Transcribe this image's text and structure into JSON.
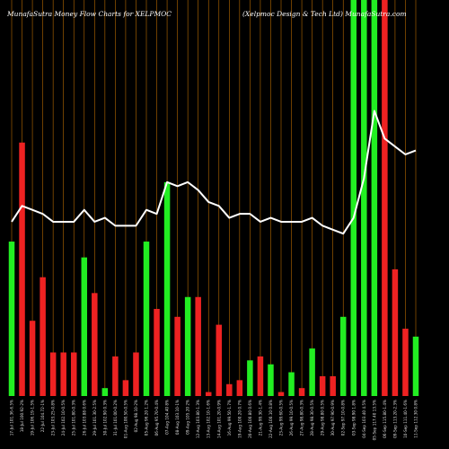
{
  "chart_data": {
    "type": "bar",
    "title_left": "MunafaSutra  Money Flow  Charts for XELPMOC",
    "title_right": "(Xelpmoc Design  & Tech Ltd) MunafaSutra.com",
    "ylim": [
      0,
      100
    ],
    "grid": "vertical-lines",
    "colors": {
      "up": "#22ee22",
      "down": "#ee2222",
      "line": "#ffffff",
      "grid": "#b86a00",
      "background": "#000000"
    },
    "categories": [
      "17-Jul 101.36-6.5%",
      "18-Jul 100.92-2%",
      "19-Jul 106.19-1.5%",
      "22-Jul 104.72-1%",
      "23-Jul 103.25-0.8%",
      "24-Jul 102.10-0.5%",
      "25-Jul 101.80-0.3%",
      "26-Jul 103.88 0.6%",
      "29-Jul 101.30-2.5%",
      "30-Jul 102.90 0.3%",
      "31-Jul 101.00-0.2%",
      "01-Aug 100.50-0.5%",
      "02-Aug 98.10-2%",
      "05-Aug 96.20 1.2%",
      "06-Aug 95.70-0.4%",
      "07-Aug 104.40 8%",
      "08-Aug 103.10-1%",
      "09-Aug 105.20 2%",
      "12-Aug 103.80-1.3%",
      "13-Aug 102.10-1.6%",
      "14-Aug 101.20-0.9%",
      "16-Aug 99.50-1.7%",
      "19-Aug 100.20 0.7%",
      "20-Aug 100.80 0.6%",
      "21-Aug 99.30-1.4%",
      "22-Aug 100.10 0.8%",
      "23-Aug 99.60-0.5%",
      "26-Aug 99.10-0.5%",
      "27-Aug 98.80-0.3%",
      "28-Aug 98.30-0.5%",
      "29-Aug 98.80 0.5%",
      "30-Aug 97.90-0.9%",
      "02-Sep 97.10-0.8%",
      "03-Sep 98.90 1.8%",
      "04-Sep 103.40 4.5%",
      "05-Sep 117.40 13.5%",
      "06-Sep 115.80-1.4%",
      "09-Sep 113.20-2.3%",
      "10-Sep 111.40-1.6%",
      "11-Sep 112.30 0.8%"
    ],
    "direction": [
      "up",
      "down",
      "down",
      "down",
      "down",
      "down",
      "down",
      "up",
      "down",
      "up",
      "down",
      "down",
      "down",
      "up",
      "down",
      "up",
      "down",
      "up",
      "down",
      "down",
      "down",
      "down",
      "down",
      "up",
      "down",
      "up",
      "down",
      "up",
      "down",
      "up",
      "down",
      "down",
      "up",
      "up",
      "up",
      "up",
      "down",
      "down",
      "down",
      "up"
    ],
    "values": [
      39,
      64,
      19,
      30,
      11,
      11,
      11,
      35,
      26,
      2,
      10,
      4,
      11,
      39,
      22,
      54,
      20,
      25,
      25,
      1,
      18,
      3,
      4,
      9,
      10,
      8,
      1,
      6,
      2,
      12,
      5,
      5,
      20,
      100,
      100,
      100,
      100,
      32,
      17,
      15
    ],
    "line_values": [
      44,
      48,
      47,
      46,
      44,
      44,
      44,
      47,
      44,
      45,
      43,
      43,
      43,
      47,
      46,
      54,
      53,
      54,
      52,
      49,
      48,
      45,
      46,
      46,
      44,
      45,
      44,
      44,
      44,
      45,
      43,
      42,
      41,
      45,
      55,
      72,
      65,
      63,
      61,
      62
    ]
  }
}
